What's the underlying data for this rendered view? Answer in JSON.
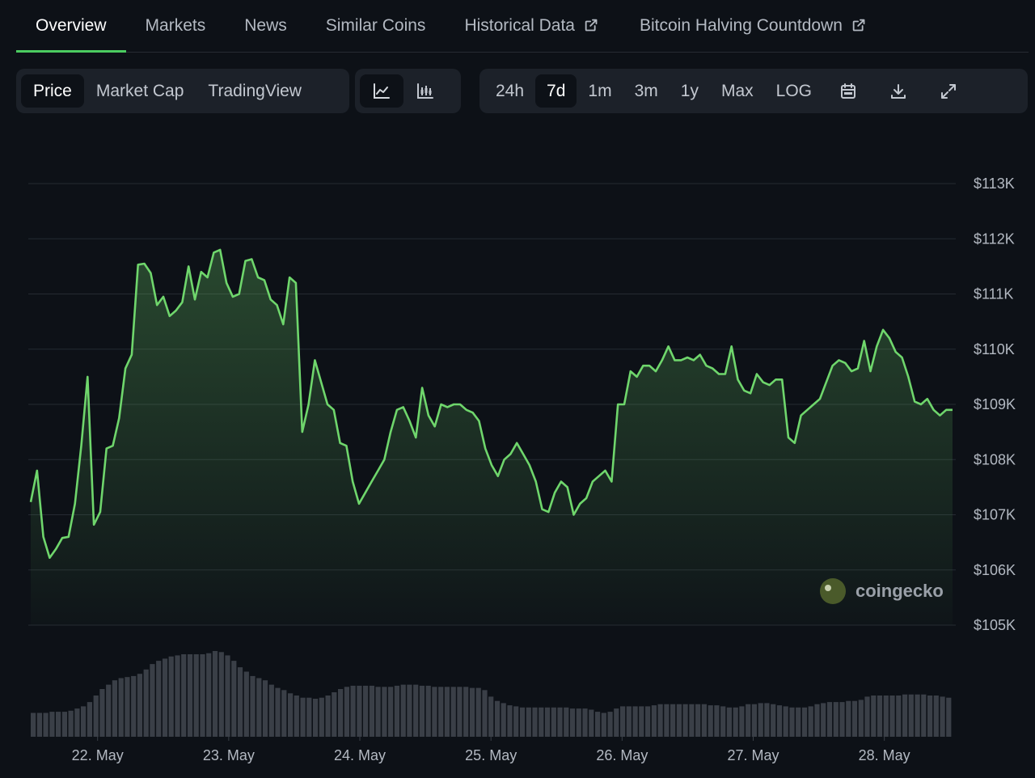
{
  "tabs": [
    {
      "label": "Overview",
      "active": true,
      "external": false
    },
    {
      "label": "Markets",
      "active": false,
      "external": false
    },
    {
      "label": "News",
      "active": false,
      "external": false
    },
    {
      "label": "Similar Coins",
      "active": false,
      "external": false
    },
    {
      "label": "Historical Data",
      "active": false,
      "external": true
    },
    {
      "label": "Bitcoin Halving Countdown",
      "active": false,
      "external": true
    }
  ],
  "metric_buttons": [
    {
      "label": "Price",
      "active": true
    },
    {
      "label": "Market Cap",
      "active": false
    },
    {
      "label": "TradingView",
      "active": false
    }
  ],
  "chart_style_buttons": [
    {
      "icon": "line-chart-icon",
      "active": true
    },
    {
      "icon": "candlestick-chart-icon",
      "active": false
    }
  ],
  "range_buttons": [
    {
      "label": "24h",
      "active": false
    },
    {
      "label": "7d",
      "active": true
    },
    {
      "label": "1m",
      "active": false
    },
    {
      "label": "3m",
      "active": false
    },
    {
      "label": "1y",
      "active": false
    },
    {
      "label": "Max",
      "active": false
    },
    {
      "label": "LOG",
      "active": false
    }
  ],
  "tool_buttons": [
    {
      "icon": "calendar-icon"
    },
    {
      "icon": "download-icon"
    },
    {
      "icon": "fullscreen-icon"
    }
  ],
  "watermark": "coingecko",
  "colors": {
    "accent": "#4bcc60",
    "line": "#6fd66c",
    "background": "#0d1117",
    "panel": "#1c2129",
    "volume": "#3a3f47"
  },
  "chart_data": {
    "type": "area",
    "x_ticks": [
      "22. May",
      "23. May",
      "24. May",
      "25. May",
      "26. May",
      "27. May",
      "28. May"
    ],
    "y_ticks": [
      "$105K",
      "$106K",
      "$107K",
      "$108K",
      "$109K",
      "$110K",
      "$111K",
      "$112K",
      "$113K"
    ],
    "y_tick_values": [
      105000,
      106000,
      107000,
      108000,
      109000,
      110000,
      111000,
      112000,
      113000
    ],
    "ylim": [
      105000,
      113000
    ],
    "x_start_day": 21.49,
    "x_end_day": 28.52,
    "grid": true,
    "price_series": [
      107230,
      107800,
      106600,
      106220,
      106380,
      106580,
      106600,
      107200,
      108250,
      109500,
      106820,
      107050,
      108200,
      108250,
      108750,
      109650,
      109900,
      111530,
      111550,
      111380,
      110800,
      110950,
      110600,
      110700,
      110850,
      111500,
      110900,
      111400,
      111300,
      111750,
      111800,
      111200,
      110950,
      111000,
      111600,
      111630,
      111300,
      111250,
      110900,
      110800,
      110450,
      111300,
      111200,
      108500,
      109000,
      109800,
      109400,
      109000,
      108900,
      108300,
      108250,
      107600,
      107200,
      107400,
      107600,
      107800,
      108000,
      108500,
      108900,
      108950,
      108700,
      108400,
      109300,
      108800,
      108600,
      109000,
      108950,
      109000,
      109000,
      108900,
      108850,
      108700,
      108200,
      107900,
      107700,
      108000,
      108100,
      108300,
      108100,
      107900,
      107600,
      107100,
      107050,
      107400,
      107600,
      107500,
      107000,
      107200,
      107300,
      107600,
      107700,
      107800,
      107600,
      109000,
      109000,
      109600,
      109500,
      109700,
      109700,
      109600,
      109800,
      110050,
      109800,
      109800,
      109850,
      109800,
      109900,
      109700,
      109650,
      109550,
      109550,
      110050,
      109450,
      109250,
      109200,
      109550,
      109400,
      109350,
      109450,
      109450,
      108400,
      108300,
      108800,
      108900,
      109000,
      109100,
      109400,
      109700,
      109800,
      109750,
      109600,
      109650,
      110150,
      109600,
      110050,
      110350,
      110200,
      109950,
      109850,
      109500,
      109050,
      109000,
      109100,
      108900,
      108800,
      108900,
      108900
    ],
    "volume_series": [
      0.22,
      0.22,
      0.22,
      0.23,
      0.23,
      0.23,
      0.24,
      0.26,
      0.28,
      0.32,
      0.38,
      0.44,
      0.48,
      0.52,
      0.54,
      0.55,
      0.56,
      0.58,
      0.62,
      0.67,
      0.7,
      0.72,
      0.74,
      0.75,
      0.76,
      0.76,
      0.76,
      0.76,
      0.77,
      0.79,
      0.78,
      0.75,
      0.7,
      0.64,
      0.6,
      0.56,
      0.54,
      0.52,
      0.48,
      0.45,
      0.43,
      0.4,
      0.38,
      0.36,
      0.36,
      0.35,
      0.36,
      0.38,
      0.41,
      0.44,
      0.46,
      0.47,
      0.47,
      0.47,
      0.47,
      0.46,
      0.46,
      0.46,
      0.47,
      0.48,
      0.48,
      0.48,
      0.47,
      0.47,
      0.46,
      0.46,
      0.46,
      0.46,
      0.46,
      0.46,
      0.45,
      0.45,
      0.43,
      0.37,
      0.33,
      0.31,
      0.29,
      0.28,
      0.27,
      0.27,
      0.27,
      0.27,
      0.27,
      0.27,
      0.27,
      0.27,
      0.26,
      0.26,
      0.26,
      0.25,
      0.23,
      0.22,
      0.23,
      0.26,
      0.28,
      0.28,
      0.28,
      0.28,
      0.28,
      0.29,
      0.3,
      0.3,
      0.3,
      0.3,
      0.3,
      0.3,
      0.3,
      0.3,
      0.29,
      0.29,
      0.28,
      0.27,
      0.27,
      0.28,
      0.3,
      0.3,
      0.31,
      0.31,
      0.3,
      0.29,
      0.28,
      0.27,
      0.27,
      0.27,
      0.28,
      0.3,
      0.31,
      0.32,
      0.32,
      0.32,
      0.33,
      0.33,
      0.34,
      0.37,
      0.38,
      0.38,
      0.38,
      0.38,
      0.38,
      0.39,
      0.39,
      0.39,
      0.39,
      0.38,
      0.38,
      0.37,
      0.36
    ]
  }
}
